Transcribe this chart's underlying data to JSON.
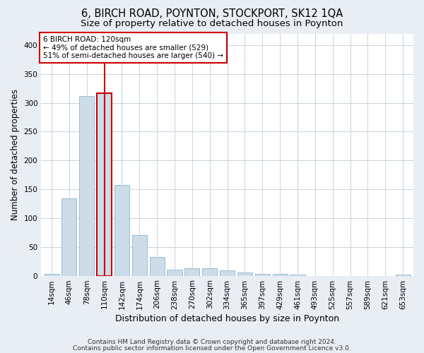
{
  "title": "6, BIRCH ROAD, POYNTON, STOCKPORT, SK12 1QA",
  "subtitle": "Size of property relative to detached houses in Poynton",
  "xlabel": "Distribution of detached houses by size in Poynton",
  "ylabel": "Number of detached properties",
  "bar_labels": [
    "14sqm",
    "46sqm",
    "78sqm",
    "110sqm",
    "142sqm",
    "174sqm",
    "206sqm",
    "238sqm",
    "270sqm",
    "302sqm",
    "334sqm",
    "365sqm",
    "397sqm",
    "429sqm",
    "461sqm",
    "493sqm",
    "525sqm",
    "557sqm",
    "589sqm",
    "621sqm",
    "653sqm"
  ],
  "bar_values": [
    3,
    134,
    312,
    317,
    157,
    71,
    32,
    10,
    13,
    13,
    9,
    6,
    3,
    3,
    2,
    0,
    0,
    0,
    0,
    0,
    2
  ],
  "bar_color": "#ccdce8",
  "bar_edgecolor": "#9bbdd4",
  "highlight_bar_index": 3,
  "vline_color": "#cc0000",
  "annotation_text": "6 BIRCH ROAD: 120sqm\n← 49% of detached houses are smaller (529)\n51% of semi-detached houses are larger (540) →",
  "annotation_box_color": "white",
  "annotation_box_edgecolor": "#cc0000",
  "footer_line1": "Contains HM Land Registry data © Crown copyright and database right 2024.",
  "footer_line2": "Contains public sector information licensed under the Open Government Licence v3.0.",
  "background_color": "#e8eef4",
  "plot_background_color": "#ffffff",
  "grid_color": "#c8d4de",
  "ylim": [
    0,
    420
  ],
  "yticks": [
    0,
    50,
    100,
    150,
    200,
    250,
    300,
    350,
    400
  ],
  "title_fontsize": 10.5,
  "subtitle_fontsize": 9.5,
  "xlabel_fontsize": 9,
  "ylabel_fontsize": 8.5,
  "tick_fontsize": 7.5,
  "footer_fontsize": 6.5
}
